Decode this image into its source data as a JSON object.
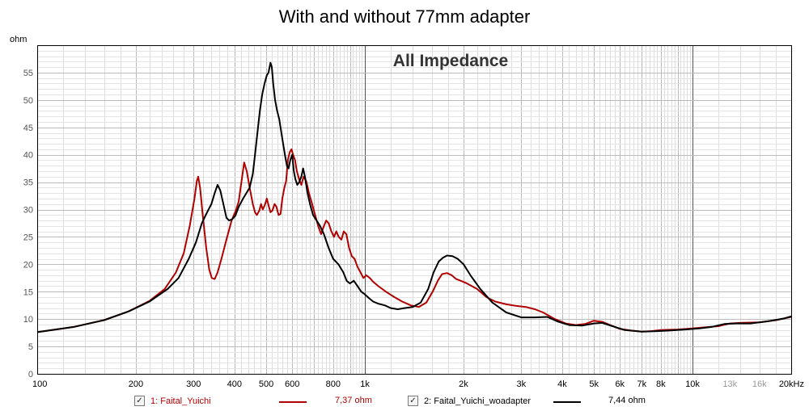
{
  "header": {
    "title": "With and without 77mm adapter",
    "unit": "ohm"
  },
  "chart_data": {
    "type": "line",
    "title": "All Impedance",
    "xlabel": "",
    "ylabel": "ohm",
    "xscale": "log",
    "xlim": [
      100,
      20000
    ],
    "ylim": [
      0,
      60
    ],
    "grid": true,
    "legend_position": "bottom",
    "x_tick_labels": [
      {
        "value": 100,
        "label": "100"
      },
      {
        "value": 200,
        "label": "200"
      },
      {
        "value": 300,
        "label": "300"
      },
      {
        "value": 400,
        "label": "400"
      },
      {
        "value": 500,
        "label": "500"
      },
      {
        "value": 600,
        "label": "600"
      },
      {
        "value": 800,
        "label": "800"
      },
      {
        "value": 1000,
        "label": "1k"
      },
      {
        "value": 2000,
        "label": "2k"
      },
      {
        "value": 3000,
        "label": "3k"
      },
      {
        "value": 4000,
        "label": "4k"
      },
      {
        "value": 5000,
        "label": "5k"
      },
      {
        "value": 6000,
        "label": "6k"
      },
      {
        "value": 7000,
        "label": "7k"
      },
      {
        "value": 8000,
        "label": "8k"
      },
      {
        "value": 10000,
        "label": "10k"
      },
      {
        "value": 13000,
        "label": "13k"
      },
      {
        "value": 16000,
        "label": "16k"
      },
      {
        "value": 20000,
        "label": "20kHz"
      }
    ],
    "y_ticks": [
      0,
      5,
      10,
      15,
      20,
      25,
      30,
      35,
      40,
      45,
      50,
      55
    ],
    "series": [
      {
        "name": "1: Faital_Yuichi",
        "value_label": "7,37 ohm",
        "checked": true,
        "color": "#b00000",
        "points": [
          [
            100,
            7.6
          ],
          [
            130,
            8.6
          ],
          [
            160,
            9.8
          ],
          [
            190,
            11.4
          ],
          [
            220,
            13.3
          ],
          [
            245,
            15.5
          ],
          [
            265,
            18.5
          ],
          [
            280,
            22
          ],
          [
            292,
            27
          ],
          [
            302,
            32
          ],
          [
            307,
            35.2
          ],
          [
            310,
            36
          ],
          [
            314,
            34
          ],
          [
            320,
            29
          ],
          [
            328,
            23
          ],
          [
            335,
            19
          ],
          [
            341,
            17.5
          ],
          [
            348,
            17.3
          ],
          [
            355,
            18.5
          ],
          [
            365,
            21
          ],
          [
            378,
            24.5
          ],
          [
            392,
            28
          ],
          [
            405,
            30
          ],
          [
            412,
            31.5
          ],
          [
            420,
            35
          ],
          [
            428,
            38.6
          ],
          [
            436,
            37
          ],
          [
            445,
            34
          ],
          [
            455,
            31
          ],
          [
            462,
            29.5
          ],
          [
            468,
            29
          ],
          [
            476,
            29.8
          ],
          [
            482,
            31
          ],
          [
            488,
            30
          ],
          [
            495,
            30.8
          ],
          [
            502,
            32
          ],
          [
            508,
            30.8
          ],
          [
            515,
            29.5
          ],
          [
            522,
            29.8
          ],
          [
            530,
            31
          ],
          [
            537,
            30.5
          ],
          [
            545,
            29
          ],
          [
            553,
            29.2
          ],
          [
            560,
            32
          ],
          [
            568,
            34
          ],
          [
            575,
            35.2
          ],
          [
            582,
            39
          ],
          [
            590,
            40.5
          ],
          [
            597,
            41
          ],
          [
            604,
            40
          ],
          [
            612,
            39
          ],
          [
            620,
            37
          ],
          [
            630,
            35.5
          ],
          [
            640,
            34.5
          ],
          [
            650,
            36
          ],
          [
            662,
            35.2
          ],
          [
            675,
            33
          ],
          [
            690,
            31
          ],
          [
            705,
            29
          ],
          [
            720,
            27
          ],
          [
            735,
            25.5
          ],
          [
            750,
            27
          ],
          [
            762,
            28
          ],
          [
            775,
            27.5
          ],
          [
            790,
            26
          ],
          [
            805,
            25
          ],
          [
            818,
            26
          ],
          [
            832,
            25
          ],
          [
            848,
            24.5
          ],
          [
            862,
            26
          ],
          [
            878,
            25.5
          ],
          [
            895,
            23
          ],
          [
            912,
            21.5
          ],
          [
            930,
            21
          ],
          [
            950,
            19.5
          ],
          [
            970,
            18.5
          ],
          [
            990,
            17.5
          ],
          [
            1010,
            18
          ],
          [
            1035,
            17.5
          ],
          [
            1060,
            16.8
          ],
          [
            1100,
            16
          ],
          [
            1160,
            15
          ],
          [
            1230,
            14
          ],
          [
            1300,
            13.2
          ],
          [
            1380,
            12.5
          ],
          [
            1460,
            12.2
          ],
          [
            1540,
            13
          ],
          [
            1610,
            15
          ],
          [
            1670,
            17
          ],
          [
            1720,
            18.2
          ],
          [
            1780,
            18.4
          ],
          [
            1840,
            18
          ],
          [
            1900,
            17.3
          ],
          [
            1960,
            17
          ],
          [
            2050,
            16.5
          ],
          [
            2200,
            15.5
          ],
          [
            2350,
            14
          ],
          [
            2500,
            13.2
          ],
          [
            2700,
            12.7
          ],
          [
            2900,
            12.4
          ],
          [
            3100,
            12.2
          ],
          [
            3300,
            11.8
          ],
          [
            3500,
            11.2
          ],
          [
            3800,
            10
          ],
          [
            4100,
            9.2
          ],
          [
            4400,
            8.9
          ],
          [
            4700,
            9.1
          ],
          [
            5000,
            9.7
          ],
          [
            5300,
            9.5
          ],
          [
            5600,
            8.9
          ],
          [
            6000,
            8.2
          ],
          [
            6500,
            7.9
          ],
          [
            7000,
            7.7
          ],
          [
            7500,
            7.8
          ],
          [
            8000,
            8
          ],
          [
            9000,
            8.1
          ],
          [
            10000,
            8.3
          ],
          [
            11000,
            8.5
          ],
          [
            12000,
            8.7
          ],
          [
            13000,
            9.2
          ],
          [
            14000,
            9.3
          ],
          [
            16000,
            9.4
          ],
          [
            18000,
            9.8
          ],
          [
            20000,
            10.4
          ]
        ]
      },
      {
        "name": "2: Faital_Yuichi_woadapter",
        "value_label": "7,44 ohm",
        "checked": true,
        "color": "#000000",
        "points": [
          [
            100,
            7.6
          ],
          [
            130,
            8.6
          ],
          [
            160,
            9.8
          ],
          [
            190,
            11.4
          ],
          [
            220,
            13.2
          ],
          [
            250,
            15.5
          ],
          [
            270,
            17.5
          ],
          [
            290,
            21
          ],
          [
            305,
            24
          ],
          [
            318,
            27.5
          ],
          [
            330,
            29.5
          ],
          [
            340,
            31
          ],
          [
            348,
            33
          ],
          [
            355,
            34.5
          ],
          [
            362,
            33.5
          ],
          [
            370,
            31
          ],
          [
            378,
            28.5
          ],
          [
            385,
            28
          ],
          [
            393,
            28.2
          ],
          [
            402,
            28.8
          ],
          [
            412,
            30.5
          ],
          [
            425,
            32
          ],
          [
            435,
            33
          ],
          [
            445,
            34
          ],
          [
            455,
            36.5
          ],
          [
            462,
            40
          ],
          [
            470,
            44
          ],
          [
            478,
            48
          ],
          [
            486,
            51
          ],
          [
            494,
            53
          ],
          [
            502,
            54.5
          ],
          [
            508,
            55
          ],
          [
            515,
            56.8
          ],
          [
            520,
            56
          ],
          [
            525,
            53
          ],
          [
            532,
            50
          ],
          [
            540,
            48
          ],
          [
            548,
            46.5
          ],
          [
            556,
            44
          ],
          [
            563,
            42
          ],
          [
            570,
            40
          ],
          [
            578,
            38
          ],
          [
            585,
            37.5
          ],
          [
            592,
            39
          ],
          [
            600,
            40
          ],
          [
            607,
            37
          ],
          [
            614,
            35.5
          ],
          [
            622,
            34.5
          ],
          [
            630,
            35
          ],
          [
            640,
            36
          ],
          [
            648,
            37.5
          ],
          [
            656,
            36
          ],
          [
            668,
            33
          ],
          [
            680,
            31
          ],
          [
            695,
            29
          ],
          [
            712,
            28
          ],
          [
            730,
            27
          ],
          [
            750,
            25.5
          ],
          [
            775,
            23
          ],
          [
            800,
            21
          ],
          [
            830,
            20
          ],
          [
            860,
            18.5
          ],
          [
            880,
            17
          ],
          [
            900,
            16.5
          ],
          [
            925,
            17
          ],
          [
            950,
            16
          ],
          [
            975,
            15
          ],
          [
            1000,
            14.5
          ],
          [
            1030,
            13.8
          ],
          [
            1060,
            13.2
          ],
          [
            1100,
            12.8
          ],
          [
            1150,
            12.5
          ],
          [
            1200,
            12
          ],
          [
            1260,
            11.8
          ],
          [
            1320,
            12
          ],
          [
            1400,
            12.2
          ],
          [
            1480,
            13
          ],
          [
            1560,
            15.5
          ],
          [
            1620,
            18.5
          ],
          [
            1680,
            20.5
          ],
          [
            1730,
            21.2
          ],
          [
            1780,
            21.6
          ],
          [
            1850,
            21.5
          ],
          [
            1920,
            21
          ],
          [
            2000,
            20
          ],
          [
            2100,
            18
          ],
          [
            2250,
            15.5
          ],
          [
            2450,
            13
          ],
          [
            2700,
            11.2
          ],
          [
            3000,
            10.3
          ],
          [
            3300,
            10.3
          ],
          [
            3600,
            10.4
          ],
          [
            3900,
            9.5
          ],
          [
            4200,
            8.9
          ],
          [
            4600,
            8.8
          ],
          [
            5000,
            9.2
          ],
          [
            5300,
            9.3
          ],
          [
            5700,
            8.7
          ],
          [
            6200,
            8
          ],
          [
            7000,
            7.7
          ],
          [
            7800,
            7.8
          ],
          [
            8500,
            7.9
          ],
          [
            9500,
            8.1
          ],
          [
            10500,
            8.3
          ],
          [
            11500,
            8.6
          ],
          [
            12500,
            9.1
          ],
          [
            13500,
            9.2
          ],
          [
            15000,
            9.2
          ],
          [
            17000,
            9.6
          ],
          [
            19000,
            10.1
          ],
          [
            20000,
            10.5
          ]
        ]
      }
    ]
  }
}
